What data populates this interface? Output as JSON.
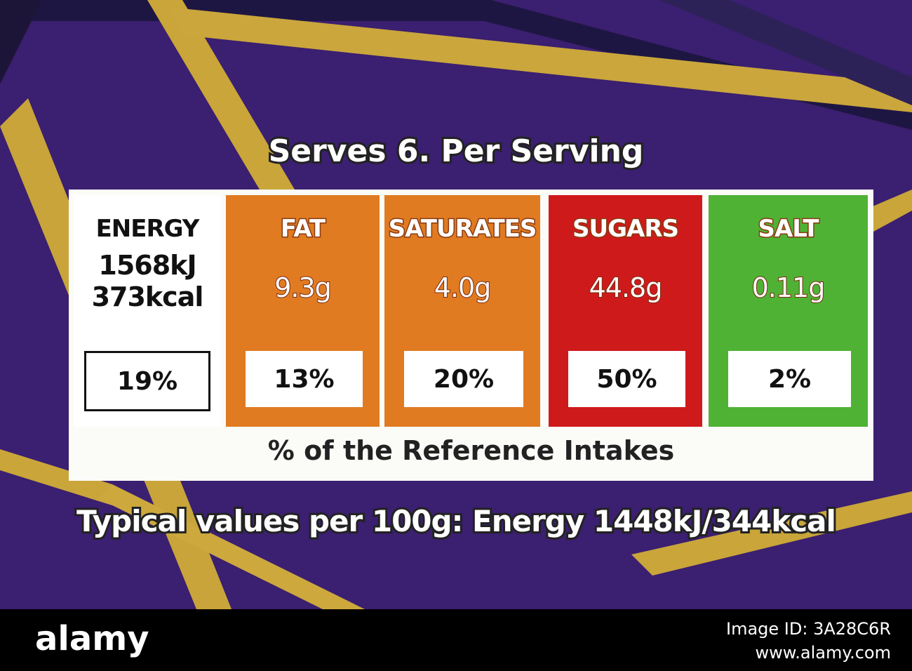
{
  "label": {
    "title": "Serves 6. Per Serving",
    "columns": [
      {
        "name": "ENERGY",
        "amounts": [
          "1568kJ",
          "373kcal"
        ],
        "percent": "19%",
        "color": "#ffffff"
      },
      {
        "name": "FAT",
        "amounts": [
          "9.3g"
        ],
        "percent": "13%",
        "color": "#e07b22"
      },
      {
        "name": "SATURATES",
        "amounts": [
          "4.0g"
        ],
        "percent": "20%",
        "color": "#e07b22"
      },
      {
        "name": "SUGARS",
        "amounts": [
          "44.8g"
        ],
        "percent": "50%",
        "color": "#cf1a1c"
      },
      {
        "name": "SALT",
        "amounts": [
          "0.11g"
        ],
        "percent": "2%",
        "color": "#4fb234"
      }
    ],
    "footer": "% of the Reference Intakes",
    "typical": "Typical values per 100g: Energy 1448kJ/344kcal"
  },
  "watermark": {
    "logo": "alamy",
    "image_id": "Image ID: 3A28C6R",
    "url": "www.alamy.com"
  }
}
